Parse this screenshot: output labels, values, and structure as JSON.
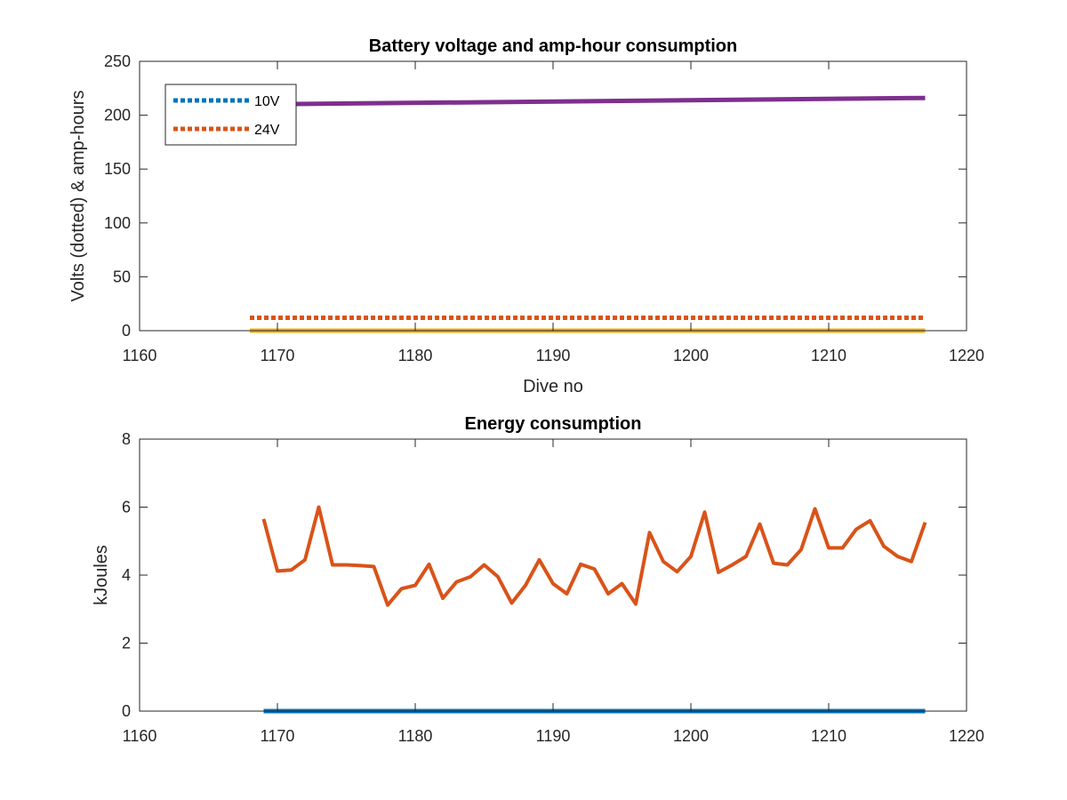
{
  "chart_data": [
    {
      "type": "line",
      "title": "Battery voltage and amp-hour consumption",
      "xlabel": "Dive no",
      "ylabel": "Volts (dotted) & amp-hours",
      "xlim": [
        1160,
        1220
      ],
      "ylim": [
        0,
        250
      ],
      "xticks": [
        1160,
        1170,
        1180,
        1190,
        1200,
        1210,
        1220
      ],
      "yticks": [
        0,
        50,
        100,
        150,
        200,
        250
      ],
      "grid": false,
      "legend_position": "top-left",
      "series": [
        {
          "name": "10V",
          "color": "#0072BD",
          "style": "dotted",
          "x": [
            1168,
            1217
          ],
          "values": [
            0,
            0
          ]
        },
        {
          "name": "24V",
          "color": "#D95319",
          "style": "dotted",
          "x": [
            1168,
            1217
          ],
          "values": [
            12,
            12
          ]
        },
        {
          "color": "#EDB120",
          "style": "solid",
          "x": [
            1168,
            1217
          ],
          "values": [
            0,
            0
          ]
        },
        {
          "color": "#7E2F8E",
          "style": "solid",
          "x": [
            1168,
            1217
          ],
          "values": [
            210,
            216
          ]
        }
      ]
    },
    {
      "type": "line",
      "title": "Energy consumption",
      "xlabel": "",
      "ylabel": "kJoules",
      "xlim": [
        1160,
        1220
      ],
      "ylim": [
        0,
        8
      ],
      "xticks": [
        1160,
        1170,
        1180,
        1190,
        1200,
        1210,
        1220
      ],
      "yticks": [
        0,
        2,
        4,
        6,
        8
      ],
      "grid": false,
      "series": [
        {
          "color": "#0072BD",
          "style": "solid",
          "x": [
            1169,
            1217
          ],
          "values": [
            0,
            0
          ]
        },
        {
          "color": "#D95319",
          "style": "solid",
          "x": [
            1169,
            1170,
            1171,
            1172,
            1173,
            1174,
            1175,
            1176,
            1177,
            1178,
            1179,
            1180,
            1181,
            1182,
            1183,
            1184,
            1185,
            1186,
            1187,
            1188,
            1189,
            1190,
            1191,
            1192,
            1193,
            1194,
            1195,
            1196,
            1197,
            1198,
            1199,
            1200,
            1201,
            1202,
            1203,
            1204,
            1205,
            1206,
            1207,
            1208,
            1209,
            1210,
            1211,
            1212,
            1213,
            1214,
            1215,
            1216,
            1217
          ],
          "values": [
            5.65,
            4.12,
            4.15,
            4.45,
            6.0,
            4.3,
            4.3,
            4.28,
            4.25,
            3.12,
            3.6,
            3.7,
            4.32,
            3.32,
            3.8,
            3.95,
            4.3,
            3.95,
            3.18,
            3.7,
            4.45,
            3.75,
            3.45,
            4.32,
            4.18,
            3.45,
            3.75,
            3.15,
            5.25,
            4.4,
            4.1,
            4.55,
            5.85,
            4.08,
            4.3,
            4.55,
            5.5,
            4.35,
            4.3,
            4.75,
            5.95,
            4.8,
            4.8,
            5.35,
            5.6,
            4.85,
            4.55,
            4.4,
            5.55
          ]
        }
      ]
    }
  ]
}
